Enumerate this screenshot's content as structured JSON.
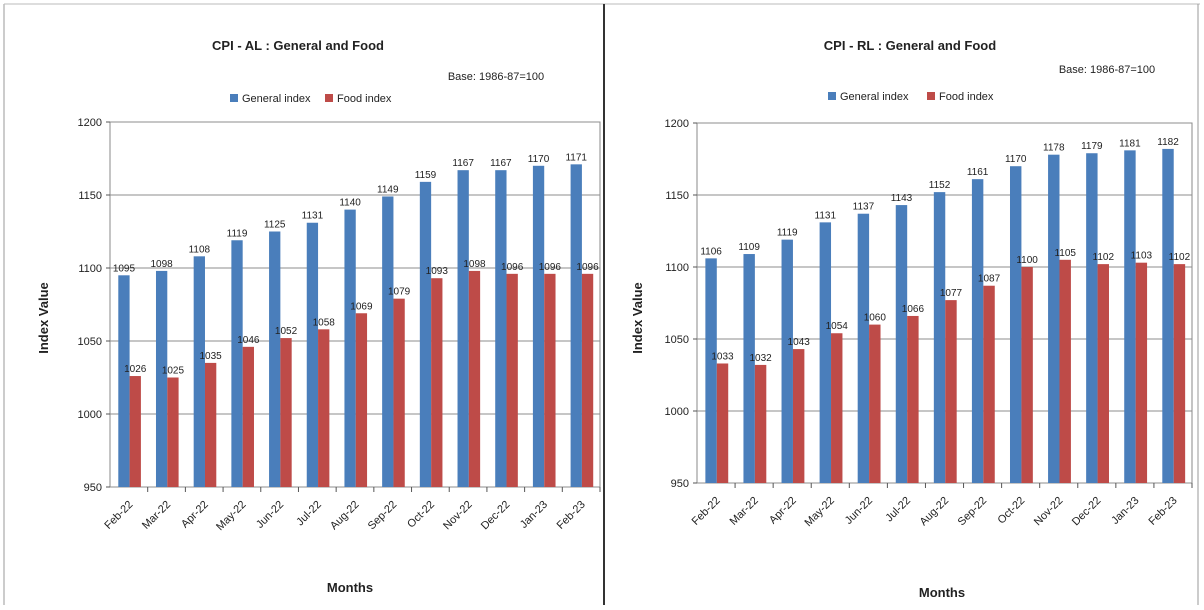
{
  "chart_data": [
    {
      "type": "bar",
      "title": "CPI - AL : General and Food",
      "subtitle": "Base: 1986-87=100",
      "xlabel": "Months",
      "ylabel": "Index Value",
      "ylim": [
        950,
        1200
      ],
      "yticks": [
        "950",
        "1000",
        "1050",
        "1100",
        "1150",
        "1200"
      ],
      "grid": true,
      "legend_position": "top",
      "categories": [
        "Feb-22",
        "Mar-22",
        "Apr-22",
        "May-22",
        "Jun-22",
        "Jul-22",
        "Aug-22",
        "Sep-22",
        "Oct-22",
        "Nov-22",
        "Dec-22",
        "Jan-23",
        "Feb-23"
      ],
      "series": [
        {
          "name": "General index",
          "color": "#4a7ebb",
          "values": [
            1095,
            1098,
            1108,
            1119,
            1125,
            1131,
            1140,
            1149,
            1159,
            1167,
            1167,
            1170,
            1171
          ]
        },
        {
          "name": "Food index",
          "color": "#be4b48",
          "values": [
            1026,
            1025,
            1035,
            1046,
            1052,
            1058,
            1069,
            1079,
            1093,
            1098,
            1096,
            1096,
            1096
          ]
        }
      ]
    },
    {
      "type": "bar",
      "title": "CPI - RL : General and Food",
      "subtitle": "Base: 1986-87=100",
      "xlabel": "Months",
      "ylabel": "Index Value",
      "ylim": [
        950,
        1200
      ],
      "yticks": [
        "950",
        "1000",
        "1050",
        "1100",
        "1150",
        "1200"
      ],
      "grid": true,
      "legend_position": "top",
      "categories": [
        "Feb-22",
        "Mar-22",
        "Apr-22",
        "May-22",
        "Jun-22",
        "Jul-22",
        "Aug-22",
        "Sep-22",
        "Oct-22",
        "Nov-22",
        "Dec-22",
        "Jan-23",
        "Feb-23"
      ],
      "series": [
        {
          "name": "General index",
          "color": "#4a7ebb",
          "values": [
            1106,
            1109,
            1119,
            1131,
            1137,
            1143,
            1152,
            1161,
            1170,
            1178,
            1179,
            1181,
            1182
          ]
        },
        {
          "name": "Food index",
          "color": "#be4b48",
          "values": [
            1033,
            1032,
            1043,
            1054,
            1060,
            1066,
            1077,
            1087,
            1100,
            1105,
            1102,
            1103,
            1102
          ]
        }
      ]
    }
  ]
}
